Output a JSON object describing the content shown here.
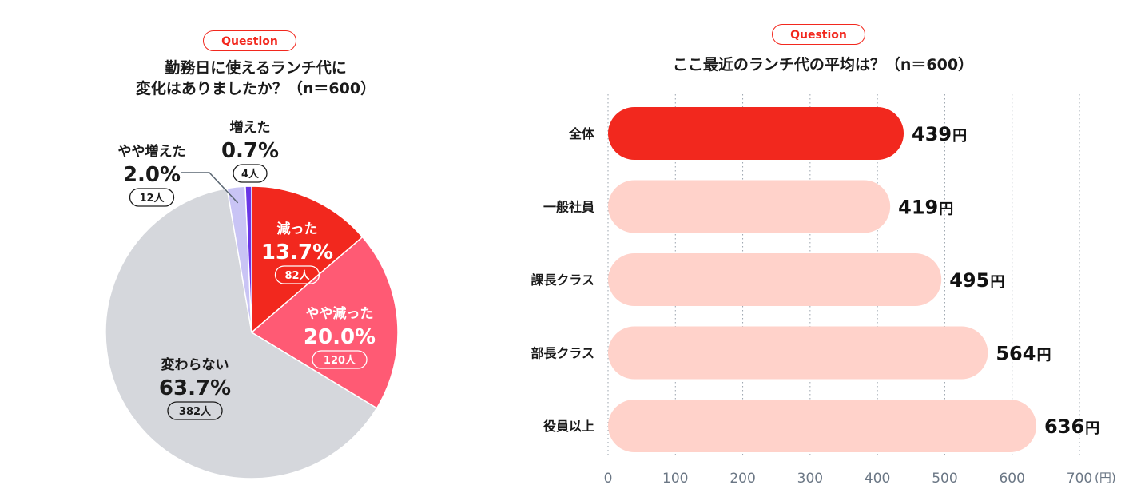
{
  "question_badge": "Question",
  "chart_data": [
    {
      "type": "pie",
      "title": "勤務日に使えるランチ代に\n変化はありましたか？（n＝600）",
      "slices": [
        {
          "label": "減った",
          "percent_label": "13.7%",
          "count_label": "82人",
          "value": 13.7,
          "color": "#f2281e"
        },
        {
          "label": "やや減った",
          "percent_label": "20.0%",
          "count_label": "120人",
          "value": 20.0,
          "color": "#ff5a74"
        },
        {
          "label": "変わらない",
          "percent_label": "63.7%",
          "count_label": "382人",
          "value": 63.7,
          "color": "#d5d7dc"
        },
        {
          "label": "やや増えた",
          "percent_label": "2.0%",
          "count_label": "12人",
          "value": 2.0,
          "color": "#c9c4f5"
        },
        {
          "label": "増えた",
          "percent_label": "0.7%",
          "count_label": "4人",
          "value": 0.7,
          "color": "#6a36e6"
        }
      ]
    },
    {
      "type": "bar",
      "orientation": "horizontal",
      "title": "ここ最近のランチ代の平均は？（n＝600）",
      "categories": [
        "全体",
        "一般社員",
        "課長クラス",
        "部長クラス",
        "役員以上"
      ],
      "values": [
        439,
        419,
        495,
        564,
        636
      ],
      "value_unit": "円",
      "highlight_index": 0,
      "colors": {
        "highlight": "#f2281e",
        "normal": "#ffd2ca"
      },
      "xlim": [
        0,
        700
      ],
      "xticks": [
        0,
        100,
        200,
        300,
        400,
        500,
        600,
        700
      ],
      "xtick_unit": "(円)",
      "grid": true
    }
  ]
}
